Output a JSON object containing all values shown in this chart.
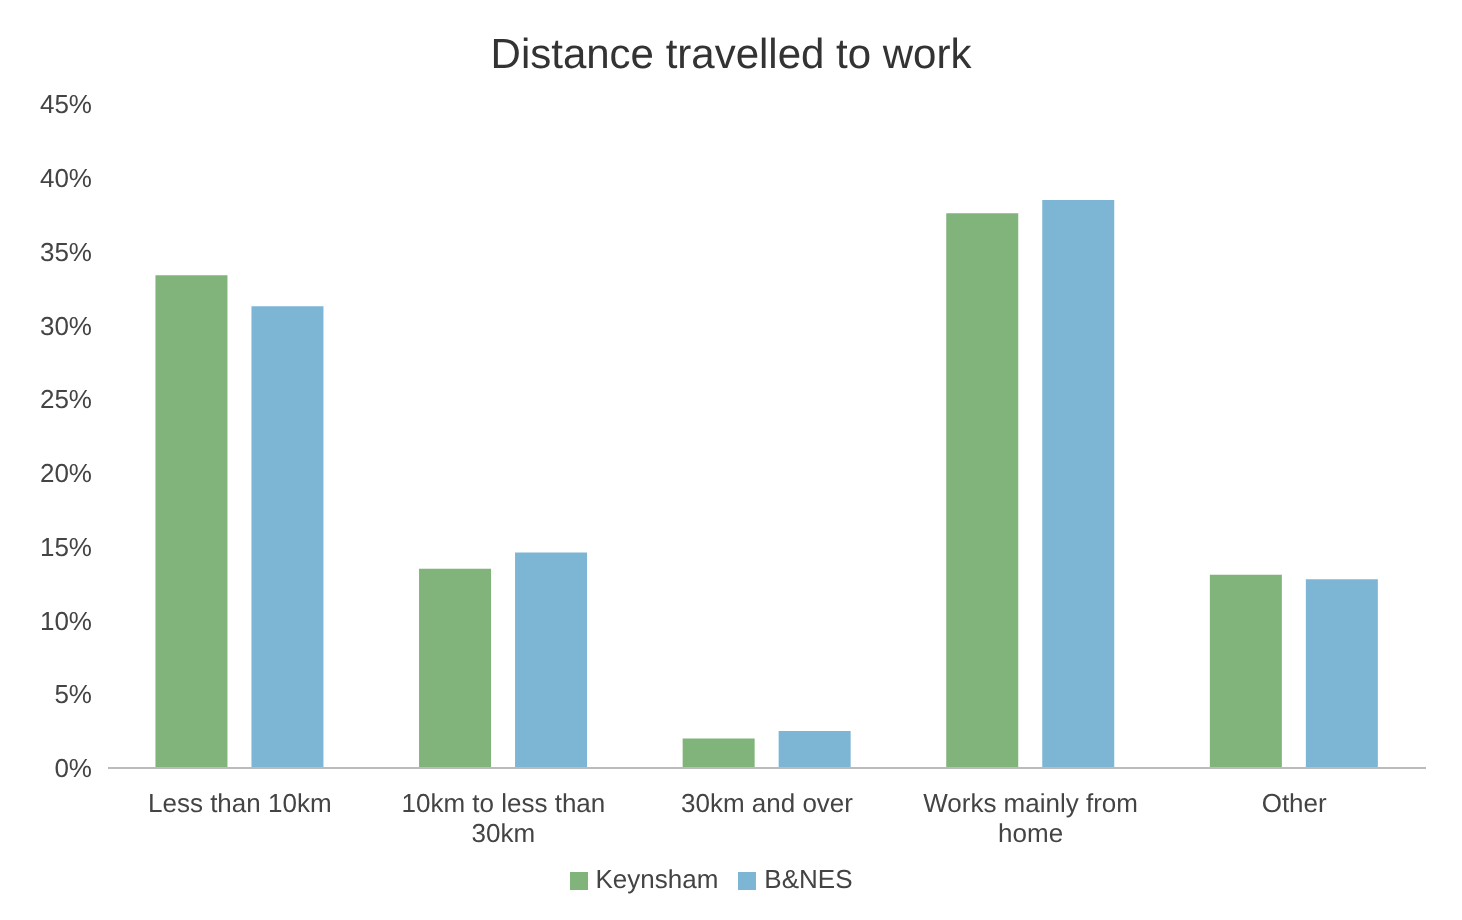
{
  "chart_data": {
    "type": "bar",
    "title": "Distance travelled to work",
    "categories": [
      "Less than 10km",
      "10km to less than 30km",
      "30km and over",
      "Works mainly from home",
      "Other"
    ],
    "series": [
      {
        "name": "Keynsham",
        "color": "#80b47a",
        "values": [
          33.4,
          13.5,
          2.0,
          37.6,
          13.1
        ]
      },
      {
        "name": "B&NES",
        "color": "#7db6d4",
        "values": [
          31.3,
          14.6,
          2.5,
          38.5,
          12.8
        ]
      }
    ],
    "ylim": [
      0,
      45
    ],
    "yticks": [
      {
        "value": 0,
        "label": "0%"
      },
      {
        "value": 5,
        "label": "5%"
      },
      {
        "value": 10,
        "label": "10%"
      },
      {
        "value": 15,
        "label": "15%"
      },
      {
        "value": 20,
        "label": "20%"
      },
      {
        "value": 25,
        "label": "25%"
      },
      {
        "value": 30,
        "label": "30%"
      },
      {
        "value": 35,
        "label": "35%"
      },
      {
        "value": 40,
        "label": "40%"
      },
      {
        "value": 45,
        "label": "45%"
      }
    ],
    "grid": false,
    "legend": "bottom"
  }
}
